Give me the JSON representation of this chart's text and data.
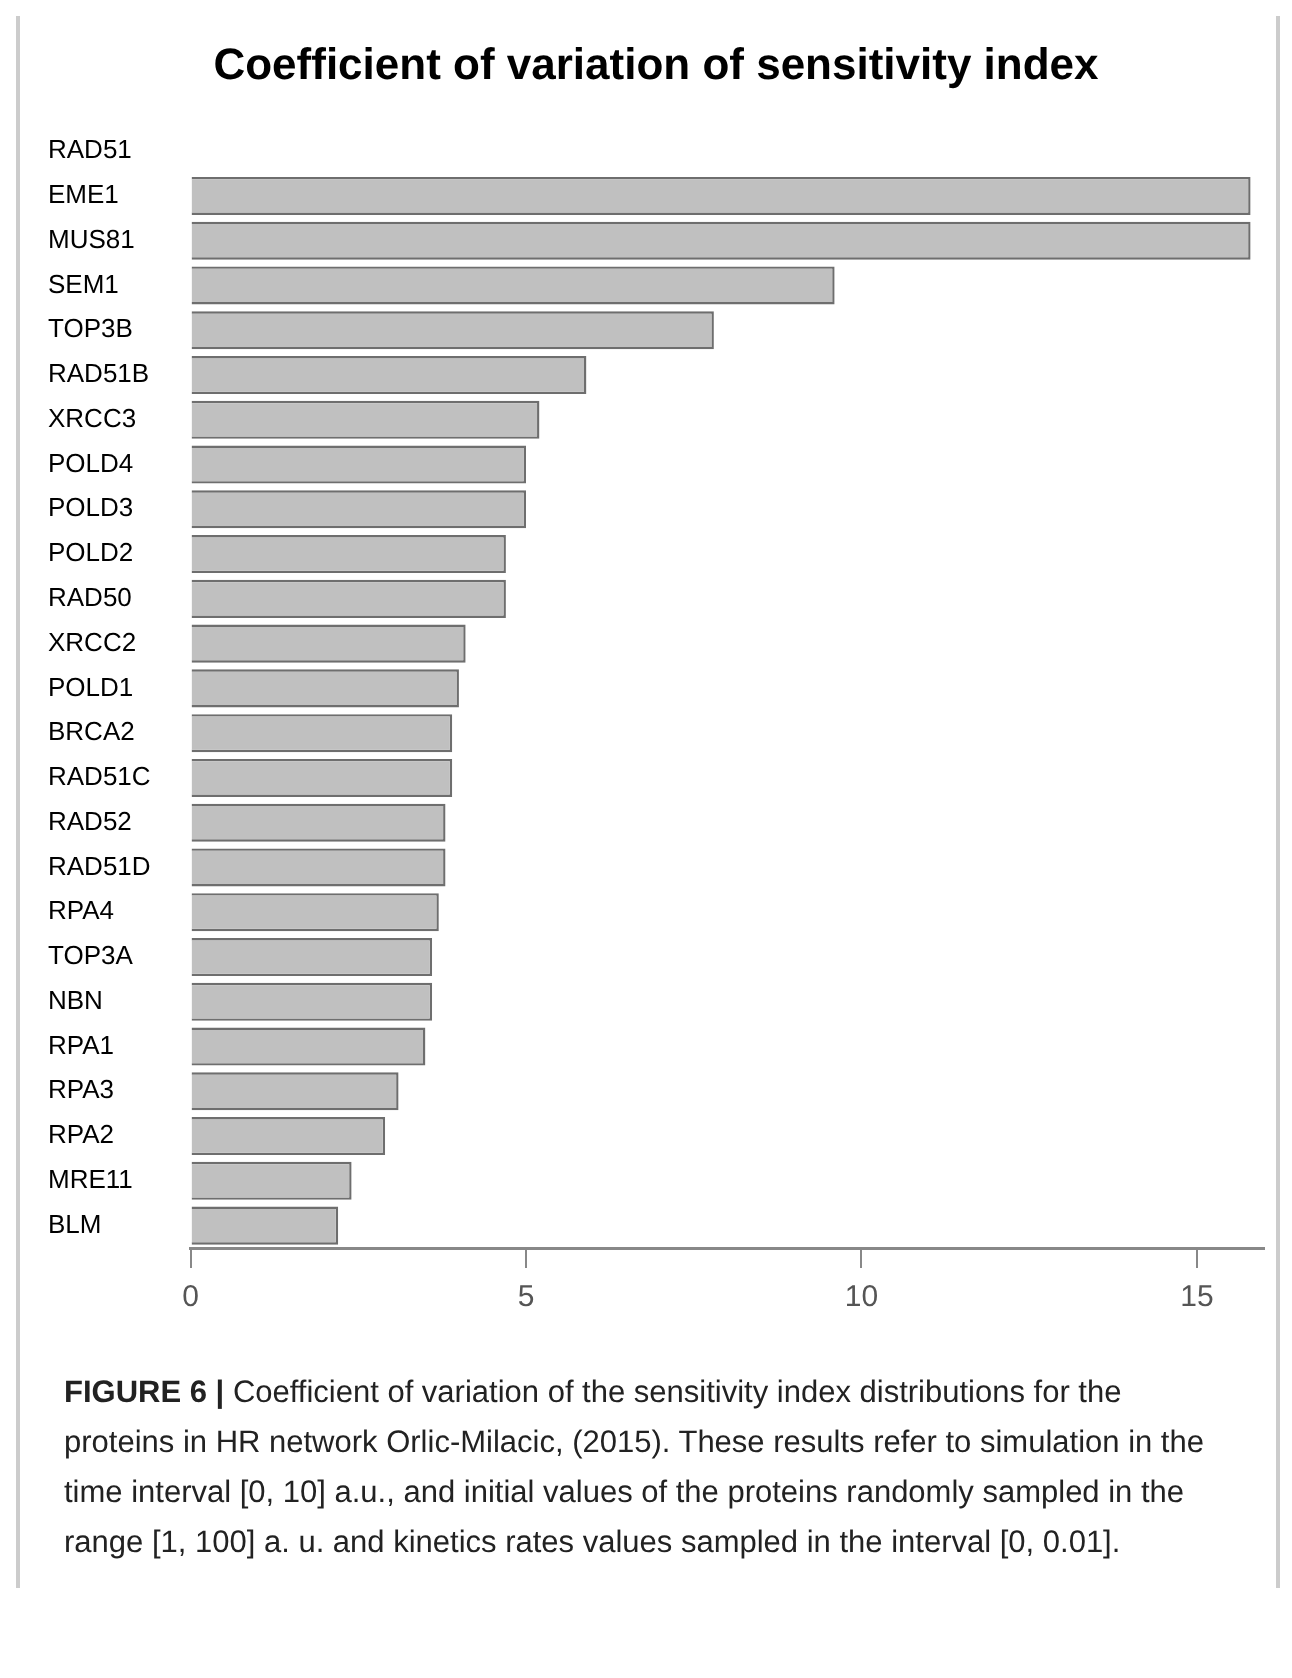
{
  "chart_data": {
    "type": "bar",
    "orientation": "horizontal",
    "title": "Coefficient of variation of sensitivity index",
    "categories": [
      "RAD51",
      "EME1",
      "MUS81",
      "SEM1",
      "TOP3B",
      "RAD51B",
      "XRCC3",
      "POLD4",
      "POLD3",
      "POLD2",
      "RAD50",
      "XRCC2",
      "POLD1",
      "BRCA2",
      "RAD51C",
      "RAD52",
      "RAD51D",
      "RPA4",
      "TOP3A",
      "NBN",
      "RPA1",
      "RPA3",
      "RPA2",
      "MRE11",
      "BLM"
    ],
    "values": [
      0,
      15.8,
      15.8,
      9.6,
      7.8,
      5.9,
      5.2,
      5.0,
      5.0,
      4.7,
      4.7,
      4.1,
      4.0,
      3.9,
      3.9,
      3.8,
      3.8,
      3.7,
      3.6,
      3.6,
      3.5,
      3.1,
      2.9,
      2.4,
      2.2
    ],
    "color": "#c0c0c0",
    "xlim": [
      0,
      16
    ],
    "xticks": [
      0,
      5,
      10,
      15
    ],
    "grid": false,
    "legend": false,
    "annotations": [
      "FIGURE 6 |",
      "Coefficient of variation of the sensitivity index distributions for the proteins in HR network Orlic-Milacic, (2015). These results refer to simulation in the time interval [0, 10] a.u., and initial values of the proteins randomly sampled in the range [1, 100] a. u. and kinetics rates values sampled in the interval [0, 0.01]."
    ]
  }
}
